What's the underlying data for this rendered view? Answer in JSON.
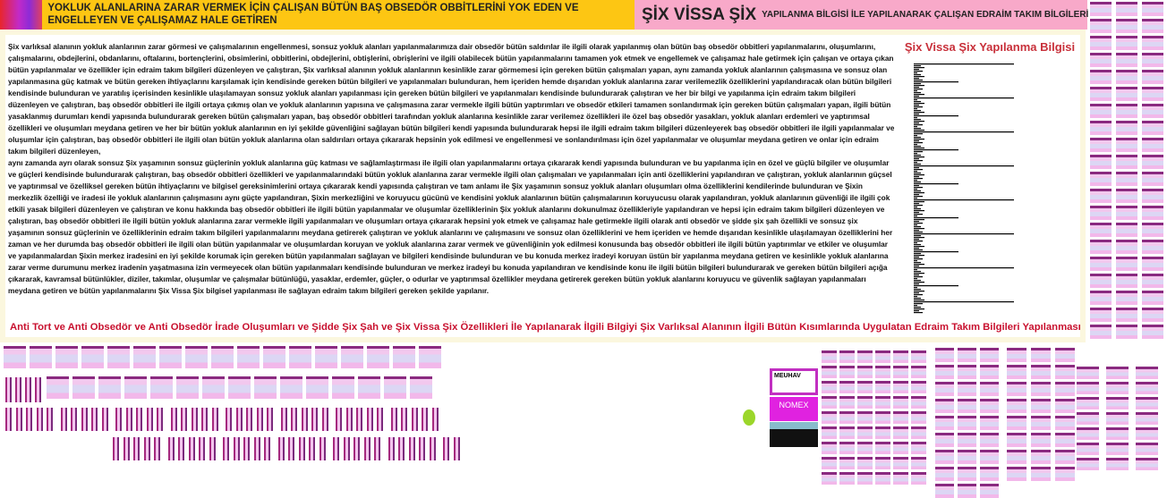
{
  "header": {
    "title": "YOKLUK ALANLARINA ZARAR VERMEK İÇİN ÇALIŞAN BÜTÜN BAŞ OBSEDÖR OBBİTLERİNİ YOK EDEN VE ENGELLEYEN VE ÇALIŞAMAZ HALE GETİREN",
    "brand": "ŞİX VİSSA ŞİX",
    "subtitle": "YAPILANMA BİLGİSİ İLE YAPILANARAK ÇALIŞAN EDRAİM TAKIM BİLGİLERİ"
  },
  "main": {
    "paragraphs": [
      "Şix varlıksal alanının yokluk alanlarının zarar görmesi ve çalışmalarının engellenmesi, sonsuz yokluk alanları yapılanmalarımıza dair obsedör bütün saldırılar ile ilgili olarak yapılanmış olan bütün baş obsedör obbitleri yapılanmalarını, oluşumlarını, çalışmalarını, obdejlerini, obdanlarını, oftalarını, bortençlerini, obsimlerini, obbitlerini, obdejlerini, obtişlerini, obrişlerini ve ilgili olabilecek bütün yapılanmalarını tamamen yok etmek ve engellemek ve çalışamaz hale getirmek için çalışan ve ortaya çıkan bütün yapılanmalar ve özellikler için edraim takım bilgileri düzenleyen ve çalıştıran, Şix varlıksal alanının yokluk alanlarının kesinlikle zarar görmemesi için gereken bütün çalışmaları yapan, aynı zamanda yokluk alanlarının çalışmasına ve sonsuz olan yapılanmasına güç katmak ve bütün gereken ihtiyaçlarını karşılamak için kendisinde gereken bütün bilgileri ve yapılanmaları bulunduran, hem içeriden hemde dışarıdan yokluk alanlarına zarar verilemezlik özelliklerini yapılandıracak olan bütün bilgileri kendisinde bulunduran ve yaratılış içerisinden kesinlikle ulaşılamayan sonsuz yokluk alanları yapılanması için gereken bütün bilgileri ve yapılanmaları kendisinde bulundurarak çalıştıran ve her bir bilgi ve yapılanma için edraim takım bilgileri düzenleyen ve çalıştıran, baş obsedör obbitleri ile ilgili ortaya çıkmış olan ve yokluk alanlarının yapısına ve çalışmasına zarar vermekle ilgili bütün yaptırımları ve obsedör etkileri tamamen sonlandırmak için gereken bütün çalışmaları yapan, ilgili bütün yasaklanmış durumları kendi yapısında bulundurarak gereken bütün çalışmaları yapan, baş obsedör obbitleri tarafından yokluk alanlarına kesinlikle zarar verilemez özellikleri ile özel baş obsedör yasakları, yokluk alanları erdemleri ve yaptırımsal özellikleri ve oluşumları meydana getiren ve her bir bütün yokluk alanlarının en iyi şekilde güvenliğini sağlayan bütün bilgileri kendi yapısında bulundurarak hepsi ile ilgili edraim takım bilgileri düzenleyerek baş obsedör obbitleri ile ilgili yapılanmalar ve oluşumlar için çalıştıran, baş obsedör obbitleri ile ilgili olan bütün yokluk alanlarına olan saldırıları ortaya çıkararak hepsinin yok edilmesi ve engellenmesi ve sonlandırılması için özel yapılanmalar ve oluşumlar meydana getiren ve onlar için edraim takım bilgileri düzenleyen,",
      "aynı zamanda ayrı olarak sonsuz Şix yaşamının sonsuz güçlerinin yokluk alanlarına güç katması ve sağlamlaştırması ile ilgili olan yapılanmalarını ortaya çıkararak kendi yapısında bulunduran ve bu yapılanma için en özel ve güçlü bilgiler ve oluşumlar ve güçleri kendisinde bulundurarak çalıştıran, baş obsedör obbitleri özellikleri ve yapılanmalarındaki bütün yokluk alanlarına zarar vermekle ilgili olan çalışmaları ve yapılanmaları için anti özelliklerini yapılandıran ve çalıştıran, yokluk alanlarının güçsel ve yaptırımsal ve özelliksel gereken bütün ihtiyaçlarını ve bilgisel gereksinimlerini ortaya çıkararak kendi yapısında çalıştıran ve tam anlamı ile Şix yaşamının sonsuz yokluk alanları oluşumları olma özelliklerini kendilerinde bulunduran ve Şixin merkezlik özelliği ve iradesi ile yokluk alanlarının çalışmasını aynı güçte yapılandıran, Şixin merkezliğini ve koruyucu gücünü ve kendisini yokluk alanlarının bütün çalışmalarının koruyucusu olarak yapılandıran, yokluk alanlarının güvenliği ile ilgili çok etkili yasak bilgileri düzenleyen ve çalıştıran ve konu hakkında baş obsedör obbitleri ile ilgili bütün yapılanmalar ve oluşumlar özelliklerinin Şix yokluk alanlarını dokunulmaz özellikleriyle yapılandıran ve hepsi için edraim takım bilgileri düzenleyen ve çalıştıran, baş obsedör obbitleri ile ilgili bütün yokluk alanlarına zarar vermekle ilgili yapılanmaları ve oluşumları ortaya çıkararak hepsini yok etmek ve çalışamaz hale getirmekle ilgili olarak anti obsedör ve şidde şix şah özellikli ve sonsuz şix yaşamının sonsuz güçlerinin ve özelliklerinin edraim takım bilgileri yapılanmalarını meydana getirerek çalıştıran ve yokluk alanlarını ve çalışmasını ve sonsuz olan özelliklerini ve hem içeriden ve hemde dışarıdan kesinlikle ulaşılamayan özelliklerini her zaman ve her durumda baş obsedör obbitleri ile ilgili olan bütün yapılanmalar ve oluşumlardan koruyan ve yokluk alanlarına zarar vermek ve güvenliğinin yok edilmesi konusunda baş obsedör obbitleri ile ilgili bütün yaptırımlar ve etkiler ve oluşumlar ve yapılanmalardan Şixin merkez iradesini en iyi şekilde korumak için gereken bütün yapılanmaları sağlayan ve bilgileri kendisinde bulunduran ve bu konuda merkez iradeyi koruyan üstün bir yapılanma meydana getiren ve kesinlikle yokluk alanlarına zarar verme durumunu merkez iradenin yaşatmasına izin vermeyecek olan bütün yapılanmaları kendisinde bulunduran ve merkez iradeyi bu konuda yapılandıran ve kendisinde konu ile ilgili bütün bilgileri bulundurarak ve gereken bütün bilgileri açığa çıkararak, kavramsal bütünlükler, diziler, takımlar, oluşumlar ve çalışmalar bütünlüğü, yasaklar, erdemler, güçler, o odurlar ve yaptırımsal özellikler meydana getirerek gereken bütün yokluk alanlarını koruyucu ve güvenlik sağlayan yapılanmaları meydana getiren ve bütün yapılanmalarını Şix Vissa Şix bilgisel yapılanması ile sağlayan edraim takım bilgileri gereken şekilde yapılanır."
    ],
    "side_title": "Şix Vissa Şix Yapılanma Bilgisi",
    "footer": "Anti Tort ve Anti Obsedör ve Anti Obsedör İrade Oluşumları ve Şidde Şix Şah ve Şix Vissa Şix Özellikleri İle Yapılanarak İlgili Bilgiyi Şix Varlıksal Alanının İlgili Bütün Kısımlarında Uygulatan Edraim Takım Bilgileri Yapılanması"
  },
  "gallery": {
    "labels": [
      "MEUHAV",
      "NOMEX"
    ],
    "accent": "#d62fd6",
    "smiley_color": "#9bd62a"
  },
  "colors": {
    "header_yellow": "#fdc613",
    "header_pink": "#f8a9c9",
    "footer_red": "#c8102e",
    "side_title": "#c8303a"
  }
}
